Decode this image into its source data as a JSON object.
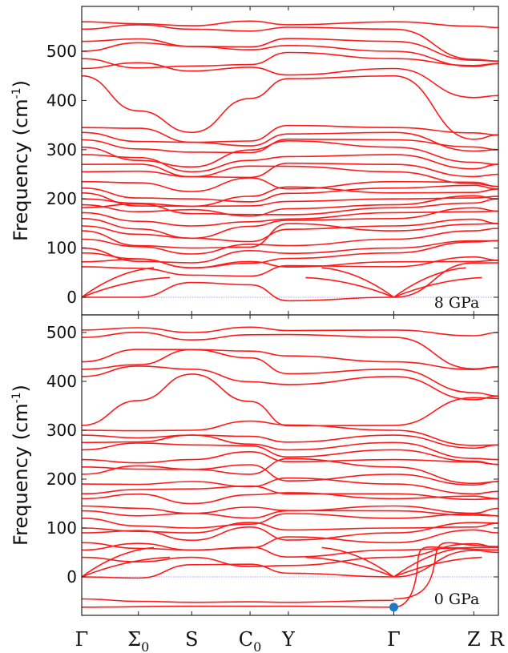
{
  "colors": {
    "band": "#ff1a1a",
    "zero_line": "#8080ff",
    "marker": "#1f78c8",
    "axis": "#222222"
  },
  "x_labels": [
    {
      "main": "Γ",
      "sub": ""
    },
    {
      "main": "Σ",
      "sub": "0"
    },
    {
      "main": "S",
      "sub": ""
    },
    {
      "main": "C",
      "sub": "0"
    },
    {
      "main": "Y",
      "sub": ""
    },
    {
      "main": "Γ",
      "sub": ""
    },
    {
      "main": "Z",
      "sub": ""
    },
    {
      "main": "R",
      "sub": ""
    }
  ],
  "chart_data": [
    {
      "type": "line",
      "panel": "top",
      "ylabel": "Frequency (cm",
      "ylabel_sup": "-1",
      "ylabel_end": ")",
      "annotation": "8 GPa",
      "ylim": [
        -8,
        570
      ],
      "yticks": [
        0,
        100,
        200,
        300,
        400,
        500
      ],
      "x_high_symmetry": [
        "Γ",
        "Σ0",
        "S",
        "C0",
        "Y",
        "Γ",
        "Z",
        "R"
      ],
      "band_values_at_gamma": [
        0,
        62,
        72,
        90,
        100,
        118,
        135,
        145,
        160,
        172,
        182,
        188,
        200,
        212,
        222,
        235,
        255,
        270,
        290,
        305,
        320,
        335,
        345,
        450,
        465,
        485,
        500,
        520,
        545,
        560
      ],
      "band_values_at_S": [
        30,
        45,
        60,
        70,
        88,
        100,
        120,
        145,
        170,
        178,
        185,
        200,
        215,
        245,
        255,
        265,
        295,
        315,
        335,
        460,
        470,
        510,
        545,
        552
      ],
      "band_values_at_R": [
        70,
        75,
        115,
        140,
        150,
        175,
        200,
        205,
        220,
        225,
        250,
        270,
        300,
        330,
        410,
        475,
        480,
        548
      ],
      "imaginary_mode": false
    },
    {
      "type": "line",
      "panel": "bottom",
      "ylabel": "Frequency (cm",
      "ylabel_sup": "-1",
      "ylabel_end": ")",
      "annotation": "0 GPa",
      "ylim": [
        -95,
        525
      ],
      "yticks": [
        0,
        100,
        200,
        300,
        400,
        500
      ],
      "x_high_symmetry": [
        "Γ",
        "Σ0",
        "S",
        "C0",
        "Y",
        "Γ",
        "Z",
        "R"
      ],
      "band_values_at_gamma": [
        0,
        40,
        55,
        70,
        90,
        100,
        120,
        135,
        145,
        160,
        170,
        190,
        210,
        225,
        240,
        260,
        275,
        290,
        300,
        310,
        410,
        425,
        440,
        490,
        505
      ],
      "band_values_at_S": [
        25,
        40,
        55,
        75,
        90,
        100,
        130,
        150,
        180,
        195,
        220,
        240,
        270,
        290,
        300,
        415,
        425,
        465,
        485,
        500
      ],
      "band_values_at_R": [
        50,
        60,
        90,
        110,
        125,
        140,
        160,
        175,
        195,
        230,
        240,
        270,
        365,
        370,
        430,
        500
      ],
      "imaginary_mode": true,
      "imaginary_branch_values": [
        -45,
        -62
      ],
      "soft_mode_point": {
        "x": "Γ",
        "y": -62
      }
    }
  ]
}
